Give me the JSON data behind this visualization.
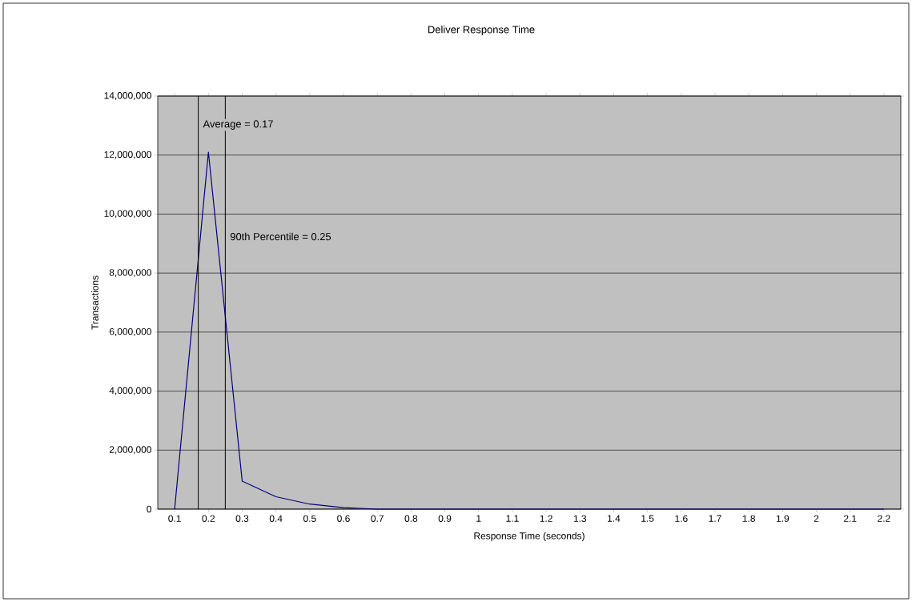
{
  "chart_data": {
    "type": "line",
    "title": "Deliver Response Time",
    "xlabel": "Response Time (seconds)",
    "ylabel": "Transactions",
    "x": [
      0.1,
      0.2,
      0.3,
      0.4,
      0.5,
      0.6,
      0.7,
      0.8,
      0.9,
      1,
      1.1,
      1.2,
      1.3,
      1.4,
      1.5,
      1.6,
      1.7,
      1.8,
      1.9,
      2,
      2.1,
      2.2
    ],
    "series": [
      {
        "color": "#000080",
        "values": [
          0,
          12100000,
          950000,
          420000,
          170000,
          50000,
          0,
          0,
          0,
          0,
          0,
          0,
          0,
          0,
          0,
          0,
          0,
          0,
          0,
          0,
          0,
          0
        ]
      }
    ],
    "xlim": [
      0.05,
      2.25
    ],
    "xticks": [
      0.1,
      0.2,
      0.3,
      0.4,
      0.5,
      0.6,
      0.7,
      0.8,
      0.9,
      1,
      1.1,
      1.2,
      1.3,
      1.4,
      1.5,
      1.6,
      1.7,
      1.8,
      1.9,
      2,
      2.1,
      2.2
    ],
    "ylim": [
      0,
      14000000
    ],
    "yticks": [
      {
        "value": 0,
        "label": "0"
      },
      {
        "value": 2000000,
        "label": "2,000,000"
      },
      {
        "value": 4000000,
        "label": "4,000,000"
      },
      {
        "value": 6000000,
        "label": "6,000,000"
      },
      {
        "value": 8000000,
        "label": "8,000,000"
      },
      {
        "value": 10000000,
        "label": "10,000,000"
      },
      {
        "value": 12000000,
        "label": "12,000,000"
      },
      {
        "value": 14000000,
        "label": "14,000,000"
      }
    ],
    "grid": "y",
    "marker": "none",
    "line_style": "solid",
    "ref_lines": [
      {
        "axis": "x",
        "value": 0.17,
        "label": "Average = 0.17",
        "color": "#000000"
      },
      {
        "axis": "x",
        "value": 0.25,
        "label": "90th Percentile = 0.25",
        "color": "#000000"
      }
    ]
  }
}
